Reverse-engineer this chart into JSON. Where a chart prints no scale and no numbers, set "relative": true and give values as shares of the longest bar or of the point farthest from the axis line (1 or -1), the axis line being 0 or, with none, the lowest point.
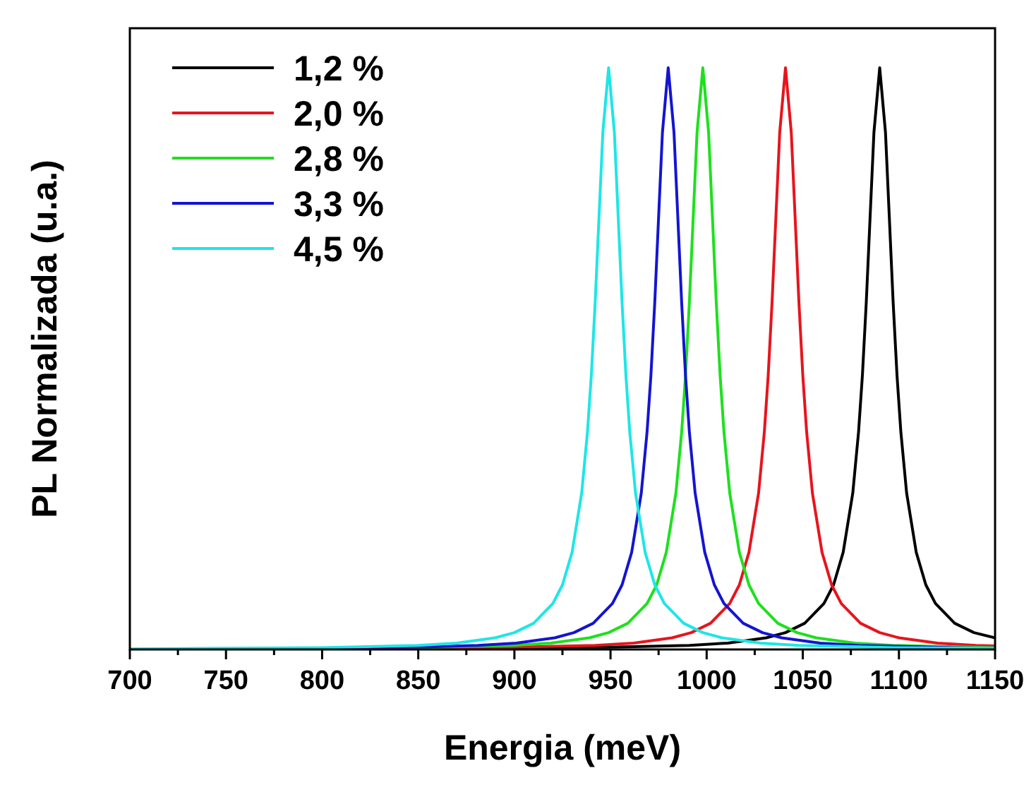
{
  "chart_data": {
    "type": "line",
    "relative": true,
    "xlabel": "Energia (meV)",
    "ylabel": "PL Normalizada (u.a.)",
    "xlim": [
      700,
      1150
    ],
    "xticks": [
      700,
      {
        "value": 725,
        "label": null
      },
      750,
      {
        "value": 775,
        "label": null
      },
      800,
      {
        "value": 825,
        "label": null
      },
      850,
      {
        "value": 875,
        "label": null
      },
      900,
      {
        "value": 925,
        "label": null
      },
      950,
      {
        "value": 975,
        "label": null
      },
      1000,
      {
        "value": 1025,
        "label": null
      },
      1050,
      {
        "value": 1075,
        "label": null
      },
      1100,
      {
        "value": 1125,
        "label": null
      },
      1150
    ],
    "legend": "top left",
    "line_style": "solid",
    "marker": "none",
    "series": [
      {
        "name": "1,2 %",
        "color": "#000000",
        "x": [
          700,
          800,
          900,
          950,
          991,
          1011,
          1031,
          1041,
          1051,
          1061,
          1066,
          1071,
          1076,
          1079,
          1081,
          1083,
          1085,
          1087,
          1090,
          1093,
          1095,
          1097,
          1099,
          1101,
          1104,
          1109,
          1114,
          1119,
          1129,
          1139,
          1150
        ],
        "values": [
          0,
          0.001,
          0.002,
          0.004,
          0.007,
          0.011,
          0.02,
          0.029,
          0.045,
          0.079,
          0.111,
          0.167,
          0.269,
          0.374,
          0.471,
          0.596,
          0.743,
          0.889,
          1,
          0.889,
          0.743,
          0.596,
          0.471,
          0.374,
          0.269,
          0.167,
          0.111,
          0.079,
          0.045,
          0.029,
          0.02
        ]
      },
      {
        "name": "2,0 %",
        "color": "#e8141c",
        "x": [
          850,
          900,
          942,
          962,
          982,
          992,
          1002,
          1012,
          1017,
          1022,
          1027,
          1030,
          1032,
          1034,
          1036,
          1038,
          1041,
          1044,
          1046,
          1048,
          1050,
          1052,
          1055,
          1060,
          1065,
          1070,
          1080,
          1090,
          1100,
          1120,
          1140,
          1150
        ],
        "values": [
          0.002,
          0.004,
          0.007,
          0.011,
          0.02,
          0.029,
          0.045,
          0.079,
          0.111,
          0.167,
          0.269,
          0.374,
          0.471,
          0.596,
          0.743,
          0.889,
          1,
          0.889,
          0.743,
          0.596,
          0.471,
          0.374,
          0.269,
          0.167,
          0.111,
          0.079,
          0.045,
          0.029,
          0.02,
          0.011,
          0.007,
          0.006
        ]
      },
      {
        "name": "2,8 %",
        "color": "#1ee01e",
        "x": [
          800,
          850,
          899,
          919,
          939,
          949,
          959,
          969,
          974,
          979,
          984,
          987,
          989,
          991,
          993,
          995,
          998,
          1001,
          1003,
          1005,
          1007,
          1009,
          1012,
          1017,
          1022,
          1027,
          1037,
          1047,
          1057,
          1077,
          1097,
          1150
        ],
        "values": [
          0.002,
          0.003,
          0.007,
          0.011,
          0.02,
          0.029,
          0.045,
          0.079,
          0.111,
          0.167,
          0.269,
          0.374,
          0.471,
          0.596,
          0.743,
          0.889,
          1,
          0.889,
          0.743,
          0.596,
          0.471,
          0.374,
          0.269,
          0.167,
          0.111,
          0.079,
          0.045,
          0.029,
          0.02,
          0.011,
          0.007,
          0.003
        ]
      },
      {
        "name": "3,3 %",
        "color": "#1414d2",
        "x": [
          800,
          850,
          881,
          901,
          921,
          931,
          941,
          951,
          956,
          961,
          966,
          969,
          971,
          973,
          975,
          977,
          980,
          983,
          985,
          987,
          989,
          991,
          994,
          999,
          1004,
          1009,
          1019,
          1029,
          1039,
          1059,
          1079,
          1129,
          1150
        ],
        "values": [
          0.002,
          0.004,
          0.007,
          0.011,
          0.02,
          0.029,
          0.045,
          0.079,
          0.111,
          0.167,
          0.269,
          0.374,
          0.471,
          0.596,
          0.743,
          0.889,
          1,
          0.889,
          0.743,
          0.596,
          0.471,
          0.374,
          0.269,
          0.167,
          0.111,
          0.079,
          0.045,
          0.029,
          0.02,
          0.011,
          0.007,
          0.003,
          0.002
        ]
      },
      {
        "name": "4,5 %",
        "color": "#1ee6e6",
        "x": [
          700,
          750,
          800,
          850,
          870,
          890,
          900,
          910,
          920,
          925,
          930,
          935,
          938,
          940,
          942,
          944,
          946,
          949,
          952,
          954,
          956,
          958,
          960,
          963,
          968,
          973,
          978,
          988,
          998,
          1008,
          1028,
          1048,
          1098,
          1150
        ],
        "values": [
          0.001,
          0.002,
          0.003,
          0.007,
          0.011,
          0.02,
          0.029,
          0.045,
          0.079,
          0.111,
          0.167,
          0.269,
          0.374,
          0.471,
          0.596,
          0.743,
          0.889,
          1,
          0.889,
          0.743,
          0.596,
          0.471,
          0.374,
          0.269,
          0.167,
          0.111,
          0.079,
          0.045,
          0.029,
          0.02,
          0.011,
          0.007,
          0.003,
          0.002
        ]
      }
    ]
  }
}
